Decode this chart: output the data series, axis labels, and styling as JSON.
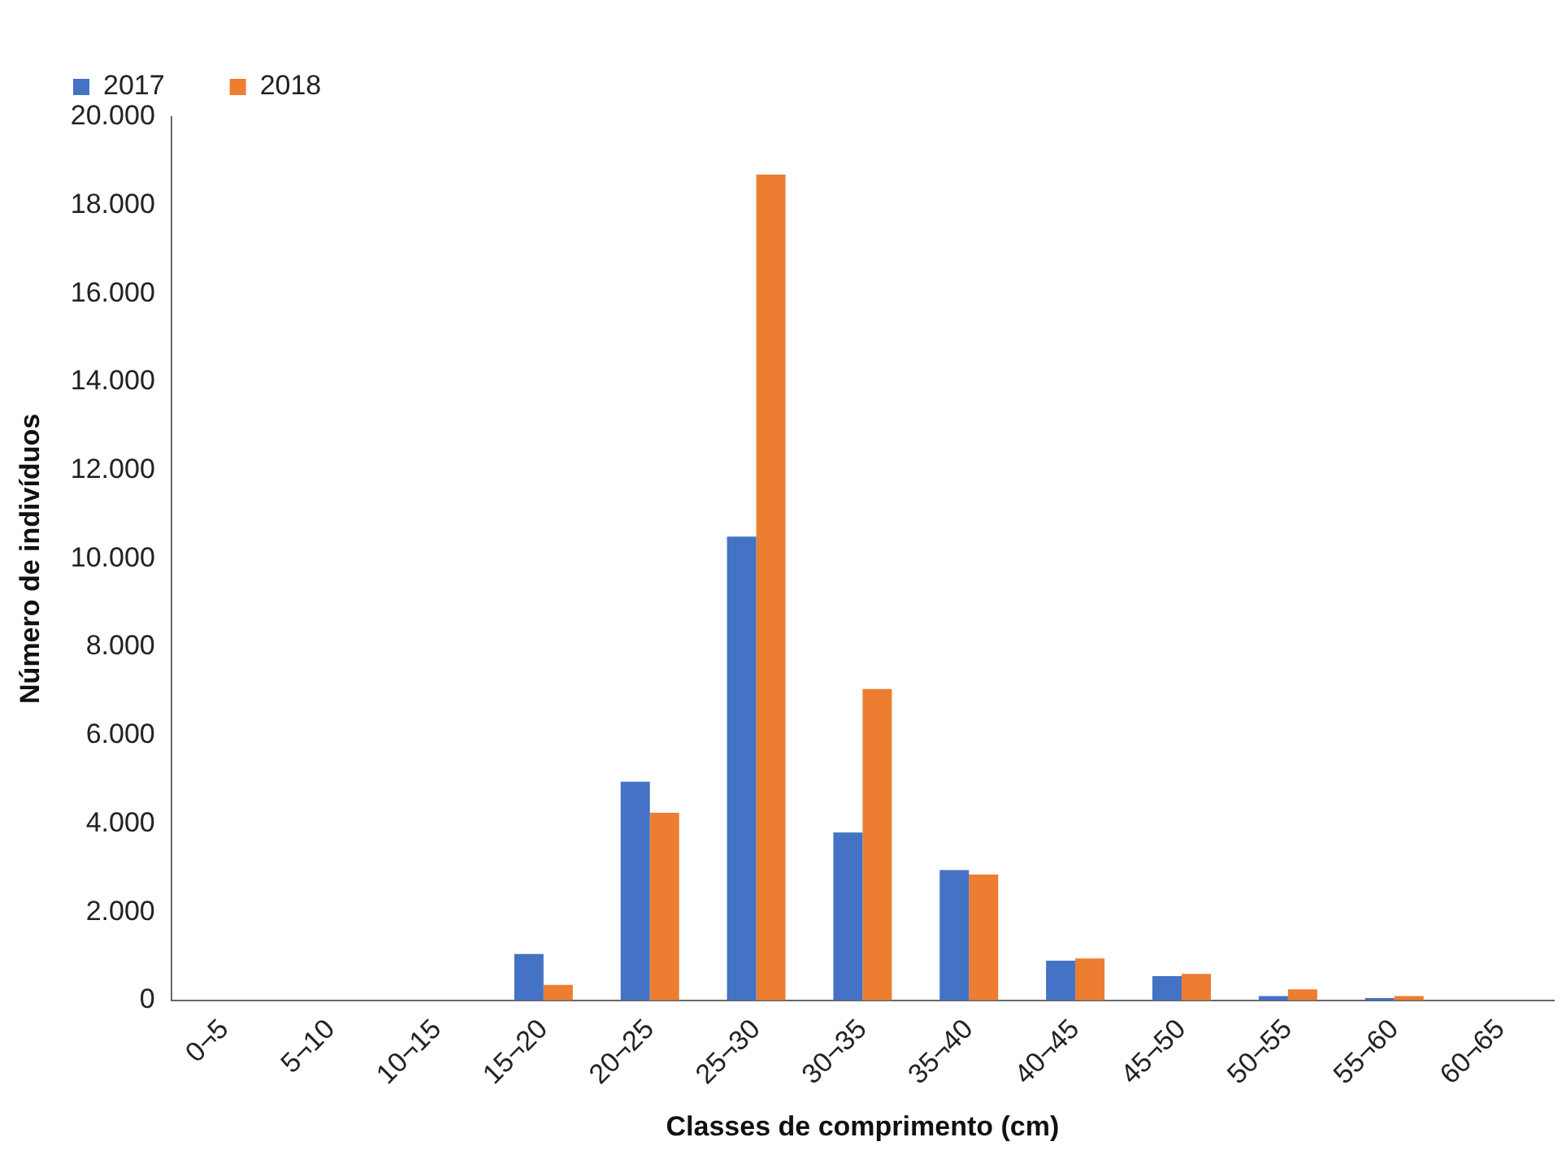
{
  "chart_data": {
    "type": "bar",
    "xlabel": "Classes de comprimento (cm)",
    "ylabel": "Número de indivíduos",
    "categories": [
      "0¬5",
      "5¬10",
      "10¬15",
      "15¬20",
      "20¬25",
      "25¬30",
      "30¬35",
      "35¬40",
      "40¬45",
      "45¬50",
      "50¬55",
      "55¬60",
      "60¬65"
    ],
    "series": [
      {
        "name": "2017",
        "color": "#4472c4",
        "values": [
          0,
          0,
          0,
          1050,
          4950,
          10500,
          3800,
          2950,
          900,
          550,
          100,
          50,
          0
        ]
      },
      {
        "name": "2018",
        "color": "#ed7d31",
        "values": [
          0,
          0,
          0,
          350,
          4250,
          18700,
          7050,
          2850,
          950,
          600,
          250,
          100,
          0
        ]
      }
    ],
    "ylim": [
      0,
      20000
    ],
    "yticks": [
      {
        "value": 0,
        "label": "0"
      },
      {
        "value": 2000,
        "label": "2.000"
      },
      {
        "value": 4000,
        "label": "4.000"
      },
      {
        "value": 6000,
        "label": "6.000"
      },
      {
        "value": 8000,
        "label": "8.000"
      },
      {
        "value": 10000,
        "label": "10.000"
      },
      {
        "value": 12000,
        "label": "12.000"
      },
      {
        "value": 14000,
        "label": "14.000"
      },
      {
        "value": 16000,
        "label": "16.000"
      },
      {
        "value": 18000,
        "label": "18.000"
      },
      {
        "value": 20000,
        "label": "20.000"
      }
    ],
    "grid": false,
    "legend": "top"
  }
}
